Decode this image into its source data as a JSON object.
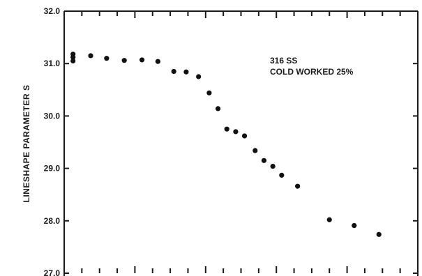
{
  "chart_data": {
    "type": "scatter",
    "title": "",
    "xlabel": "",
    "ylabel": "LINESHAPE  PARAMETER  S",
    "ylim": [
      27.0,
      32.0
    ],
    "yticks": [
      27.0,
      28.0,
      29.0,
      30.0,
      31.0,
      32.0
    ],
    "ytick_labels": [
      "27.0",
      "28.0",
      "29.0",
      "30.0",
      "31.0",
      "32.0"
    ],
    "xlim": [
      0,
      20
    ],
    "x_tick_labels_visible": false,
    "grid": false,
    "annotations": [
      "316  SS",
      "COLD WORKED 25%"
    ],
    "point_color": "#111111",
    "series": [
      {
        "x": [
          0.5,
          0.5,
          0.5,
          1.5,
          2.4,
          3.4,
          4.4,
          5.3,
          6.2,
          6.9,
          7.6,
          8.2,
          8.7,
          9.2,
          9.7,
          10.2,
          10.8,
          11.3,
          11.8,
          12.3,
          13.2,
          15.0,
          16.4,
          17.8
        ],
        "y": [
          31.18,
          31.12,
          31.05,
          31.15,
          31.1,
          31.06,
          31.07,
          31.04,
          30.85,
          30.84,
          30.75,
          30.44,
          30.14,
          29.75,
          29.7,
          29.62,
          29.34,
          29.15,
          29.04,
          28.87,
          28.66,
          28.02,
          27.91,
          27.74
        ]
      }
    ]
  }
}
